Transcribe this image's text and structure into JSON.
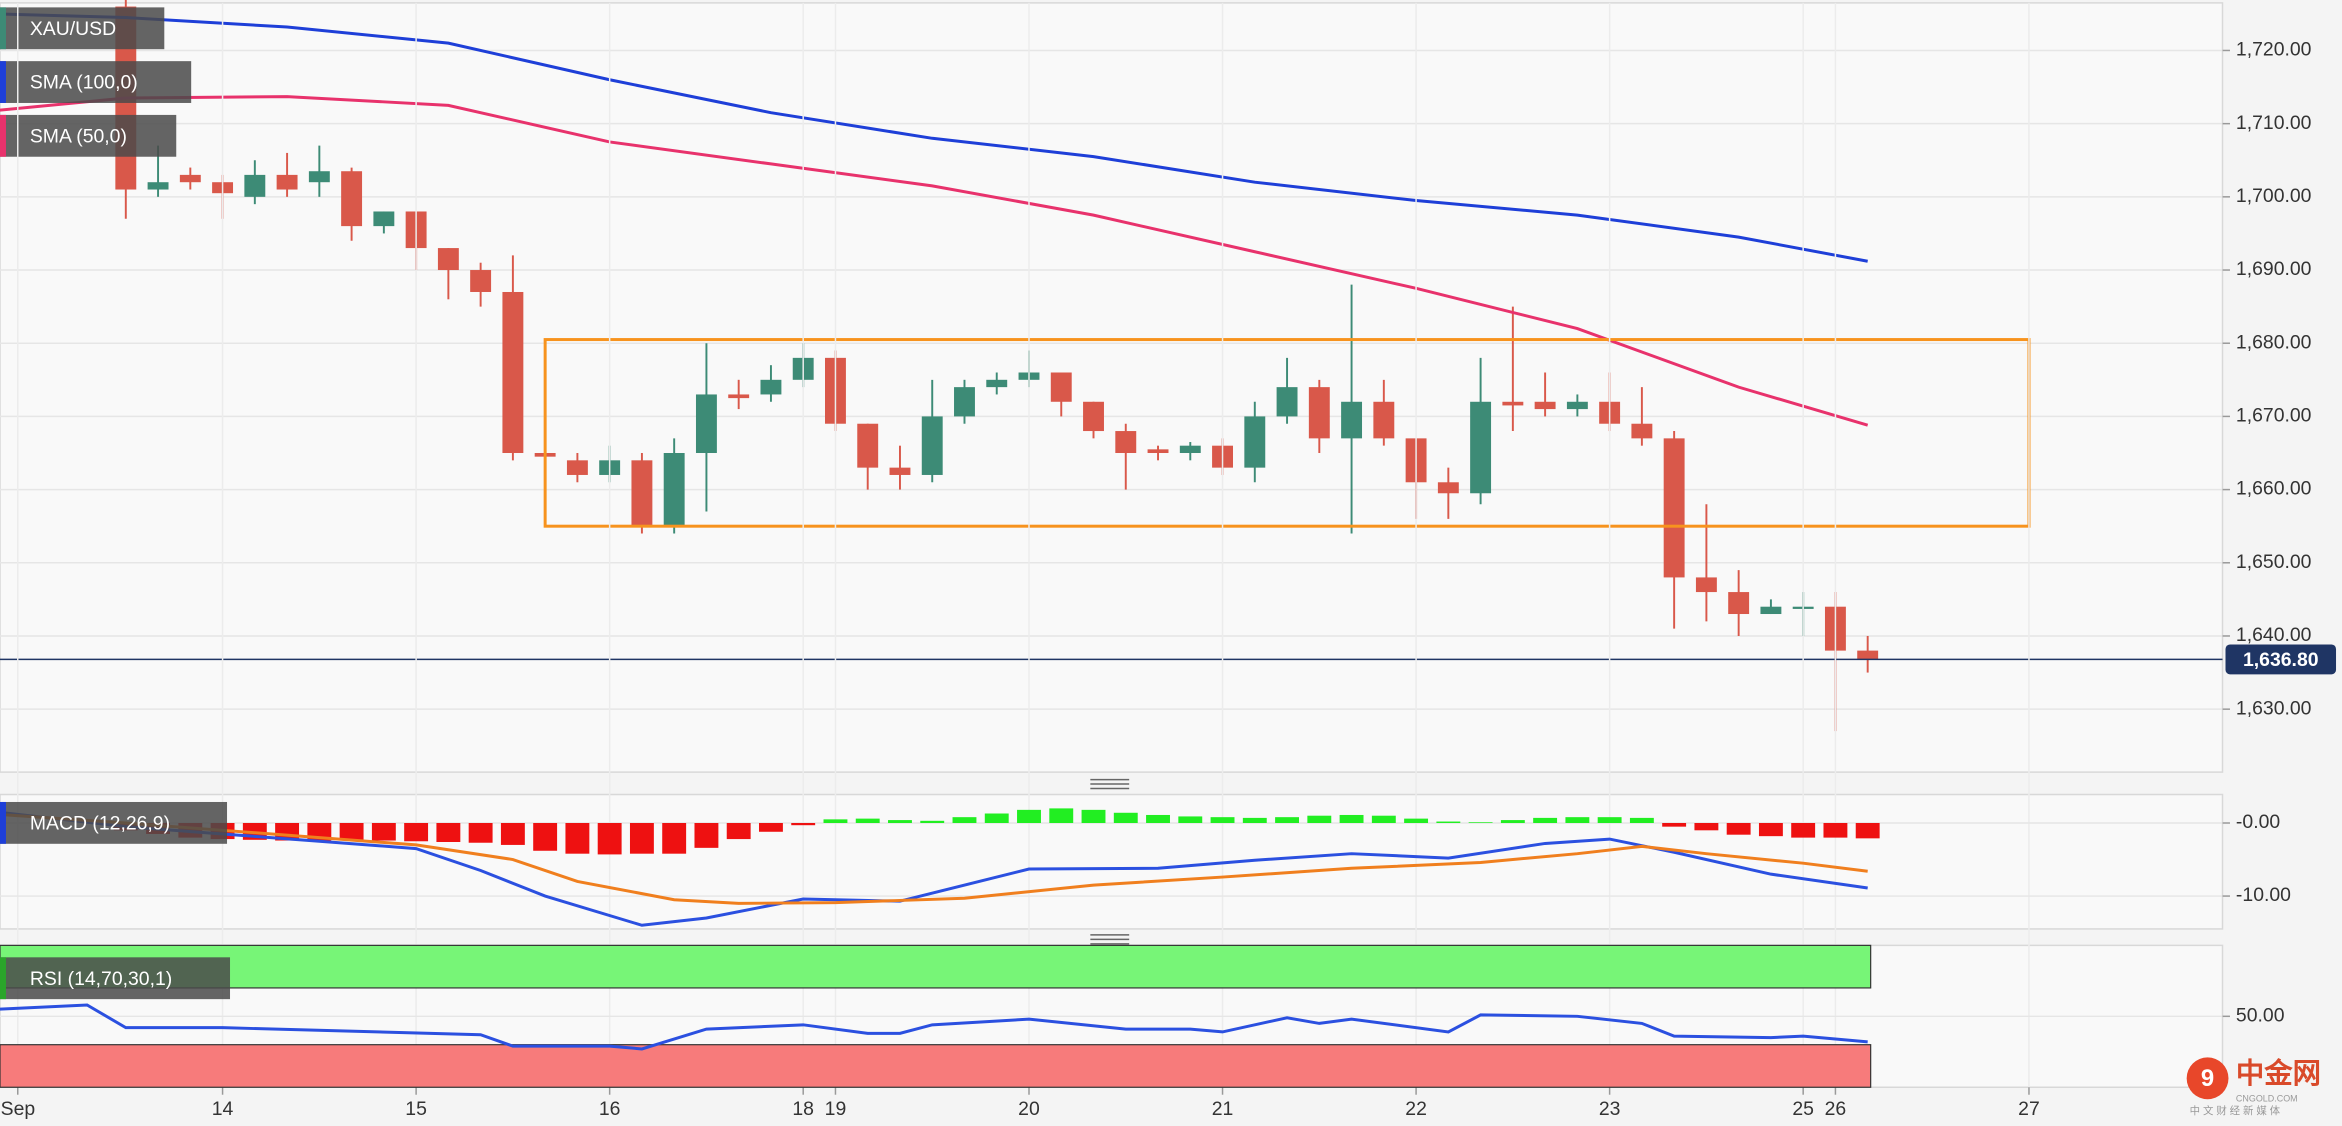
{
  "chart_data": [
    {
      "type": "candlestick",
      "candles": {
        "name": "XAU/USD",
        "up_color": "#3d8b76",
        "down_color": "#d9584a",
        "open": [
          1726,
          1701,
          1703,
          1702,
          1700,
          1703,
          1702,
          1703.5,
          1696,
          1698,
          1693,
          1690,
          1687,
          1665,
          1664,
          1662,
          1664,
          1655,
          1665,
          1673,
          1673,
          1675,
          1678,
          1669,
          1663,
          1662,
          1670,
          1674,
          1675,
          1676,
          1672,
          1668,
          1665.5,
          1665,
          1666,
          1663,
          1670,
          1674,
          1667,
          1672,
          1667,
          1661,
          1659.5,
          1672,
          1672,
          1671,
          1672,
          1669,
          1667,
          1648,
          1646,
          1643,
          1644,
          1644,
          1638
        ],
        "high": [
          1727,
          1707,
          1704,
          1703,
          1705,
          1706,
          1707,
          1704,
          1698,
          1698,
          1693,
          1691,
          1692,
          1665,
          1665,
          1666,
          1665,
          1667,
          1680,
          1675,
          1677,
          1680,
          1679,
          1669,
          1666,
          1675,
          1675,
          1676,
          1679,
          1676,
          1672,
          1669,
          1666,
          1666.5,
          1667,
          1672,
          1678,
          1675,
          1688,
          1675,
          1667,
          1663,
          1678,
          1685,
          1676,
          1673,
          1676,
          1674,
          1668,
          1658,
          1649,
          1645,
          1646,
          1646,
          1640
        ],
        "low": [
          1697,
          1700,
          1701,
          1697,
          1699,
          1700,
          1700,
          1694,
          1695,
          1690,
          1686,
          1685,
          1664,
          1664,
          1661,
          1661,
          1654,
          1654,
          1657,
          1671,
          1672,
          1674,
          1668,
          1660,
          1660,
          1661,
          1669,
          1673,
          1674,
          1670,
          1667,
          1660,
          1664,
          1664,
          1662,
          1661,
          1669,
          1665,
          1654,
          1666,
          1656,
          1656,
          1658,
          1668,
          1670,
          1670,
          1668,
          1666,
          1641,
          1642,
          1640,
          1643,
          1640,
          1627,
          1635
        ],
        "close": [
          1701,
          1702,
          1702,
          1700.5,
          1703,
          1701,
          1703.5,
          1696,
          1698,
          1693,
          1690,
          1687,
          1665,
          1664.5,
          1662,
          1664,
          1655,
          1665,
          1673,
          1672.5,
          1675,
          1678,
          1669,
          1663,
          1662,
          1670,
          1674,
          1675,
          1676,
          1672,
          1668,
          1665,
          1665,
          1666,
          1663,
          1670,
          1674,
          1667,
          1672,
          1667,
          1661,
          1659.5,
          1672,
          1671.5,
          1671,
          1672,
          1669,
          1667,
          1648,
          1646,
          1643,
          1644,
          1644,
          1638,
          1636.8
        ]
      },
      "series": [
        {
          "name": "SMA (100,0)",
          "color": "#1e3fd8",
          "x": [
            -4,
            0,
            5,
            10,
            15,
            20,
            25,
            30,
            35,
            40,
            45,
            50,
            54
          ],
          "values": [
            1725,
            1724.5,
            1723.2,
            1721,
            1716,
            1711.5,
            1708,
            1705.5,
            1702,
            1699.5,
            1697.5,
            1694.5,
            1691.2
          ]
        },
        {
          "name": "SMA (50,0)",
          "color": "#e8326c",
          "x": [
            -4,
            0,
            5,
            10,
            15,
            20,
            25,
            30,
            35,
            40,
            45,
            50,
            54
          ],
          "values": [
            1711.8,
            1713.5,
            1713.7,
            1712.5,
            1707.5,
            1704.5,
            1701.5,
            1697.5,
            1692.5,
            1687.5,
            1682,
            1674,
            1668.8
          ]
        }
      ],
      "box": {
        "x": [
          13,
          59
        ],
        "y": [
          1655,
          1680.5
        ],
        "color": "#f7931e"
      },
      "last_price": {
        "value": 1636.8,
        "label": "1,636.80",
        "color": "#1f3564"
      },
      "xlim": [
        -3.9,
        65
      ],
      "ylim": [
        1621.4,
        1726.5
      ],
      "yticks": [
        {
          "value": 1630,
          "label": "1,630.00"
        },
        {
          "value": 1640,
          "label": "1,640.00"
        },
        {
          "value": 1650,
          "label": "1,650.00"
        },
        {
          "value": 1660,
          "label": "1,660.00"
        },
        {
          "value": 1670,
          "label": "1,670.00"
        },
        {
          "value": 1680,
          "label": "1,680.00"
        },
        {
          "value": 1690,
          "label": "1,690.00"
        },
        {
          "value": 1700,
          "label": "1,700.00"
        },
        {
          "value": 1710,
          "label": "1,710.00"
        },
        {
          "value": 1720,
          "label": "1,720.00"
        }
      ],
      "xticks": [
        {
          "value": -3.35,
          "label": "Sep"
        },
        {
          "value": 3,
          "label": "14"
        },
        {
          "value": 9,
          "label": "15"
        },
        {
          "value": 15,
          "label": "16"
        },
        {
          "value": 21,
          "label": "18"
        },
        {
          "value": 22,
          "label": "19"
        },
        {
          "value": 28,
          "label": "20"
        },
        {
          "value": 34,
          "label": "21"
        },
        {
          "value": 40,
          "label": "22"
        },
        {
          "value": 46,
          "label": "23"
        },
        {
          "value": 52,
          "label": "25"
        },
        {
          "value": 53,
          "label": "26"
        },
        {
          "value": 59,
          "label": "27"
        }
      ],
      "grid": true
    },
    {
      "type": "macd",
      "title": "MACD (12,26,9)",
      "histogram": {
        "up_color": "#22ee22",
        "down_color": "#ee1111",
        "values": [
          -1,
          -1.5,
          -2,
          -2.2,
          -2.3,
          -2.4,
          -2.4,
          -2.3,
          -2.4,
          -2.5,
          -2.6,
          -2.7,
          -3,
          -3.8,
          -4.2,
          -4.3,
          -4.2,
          -4.2,
          -3.4,
          -2.2,
          -1.2,
          -0.3,
          0.5,
          0.6,
          0.4,
          0.3,
          0.8,
          1.3,
          1.8,
          2,
          1.8,
          1.4,
          1.1,
          0.9,
          0.8,
          0.7,
          0.8,
          1,
          1.1,
          1,
          0.6,
          0.2,
          0.1,
          0.4,
          0.7,
          0.8,
          0.8,
          0.7,
          -0.5,
          -1,
          -1.6,
          -1.8,
          -2,
          -2,
          -2.1
        ]
      },
      "series": [
        {
          "color": "#2b50e0",
          "x": [
            -4,
            0,
            3,
            6,
            9,
            11,
            13,
            16,
            18,
            21,
            24,
            28,
            32,
            35,
            38,
            41,
            44,
            46,
            48,
            51,
            54
          ],
          "values": [
            1.5,
            -0.5,
            -1.5,
            -2.5,
            -3.5,
            -6.5,
            -10,
            -14,
            -13,
            -10.4,
            -10.7,
            -6.3,
            -6.2,
            -5.1,
            -4.2,
            -4.8,
            -2.8,
            -2.2,
            -4,
            -7,
            -8.9
          ]
        },
        {
          "color": "#f07f1e",
          "x": [
            -4,
            0,
            3,
            6,
            9,
            12,
            14,
            17,
            19,
            22,
            26,
            30,
            34,
            38,
            42,
            45,
            47,
            49,
            52,
            54
          ],
          "values": [
            1.2,
            0,
            -1,
            -2,
            -3,
            -5,
            -8,
            -10.5,
            -11,
            -10.9,
            -10.3,
            -8.5,
            -7.4,
            -6.2,
            -5.4,
            -4.2,
            -3.2,
            -4.2,
            -5.5,
            -6.6
          ]
        }
      ],
      "xlim": [
        -3.9,
        65
      ],
      "ylim": [
        -14.5,
        3.9
      ],
      "yticks": [
        {
          "value": 0,
          "label": "-0.00"
        },
        {
          "value": -10,
          "label": "-10.00"
        }
      ],
      "grid": true
    },
    {
      "type": "rsi",
      "title": "RSI (14,70,30,1)",
      "bands": [
        {
          "range": [
            70,
            100
          ],
          "color": "#77f577"
        },
        {
          "range": [
            0,
            30
          ],
          "color": "#f77b7b"
        }
      ],
      "series": [
        {
          "color": "#2b50e0",
          "x": [
            -4,
            -1.2,
            0,
            3,
            11,
            12,
            15,
            16,
            18,
            21,
            23,
            24,
            25,
            28,
            31,
            33,
            34,
            36,
            37,
            38,
            41,
            42,
            45,
            47,
            48,
            51,
            52,
            54
          ],
          "values": [
            55,
            58,
            42,
            42,
            37,
            29,
            29,
            27,
            41,
            44,
            38,
            38,
            44,
            48,
            41,
            41,
            39,
            49,
            45,
            48,
            39,
            51,
            50,
            45,
            36,
            35,
            36,
            32
          ]
        }
      ],
      "xlim": [
        -3.9,
        65
      ],
      "ylim": [
        0,
        100
      ],
      "yticks": [
        {
          "value": 50,
          "label": "50.00"
        }
      ],
      "grid": true
    }
  ],
  "watermark": {
    "name": "中金网",
    "site": "CNGOLD.COM",
    "slogan": "中 文 财 经 新 媒 体"
  }
}
